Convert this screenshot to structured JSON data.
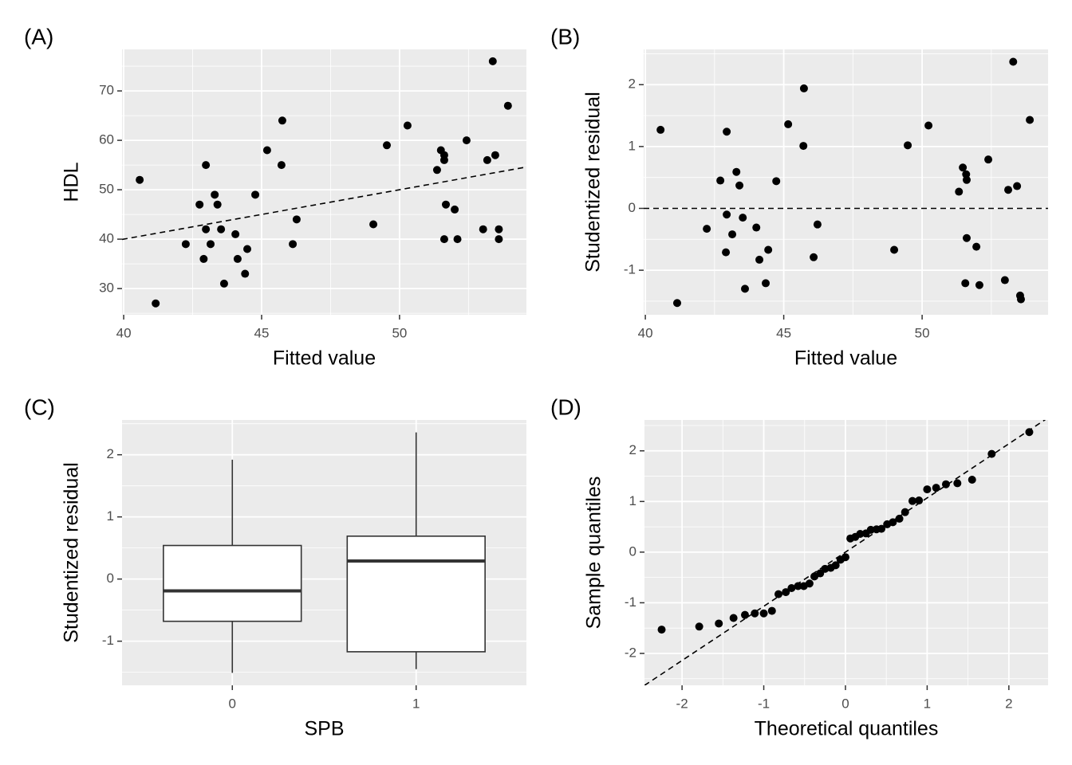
{
  "chart_data": [
    {
      "type": "scatter",
      "tag": "(A)",
      "x_label": "Fitted value",
      "y_label": "HDL",
      "color": "#000000",
      "x": [
        40.58,
        41.16,
        42.25,
        42.75,
        42.98,
        42.9,
        42.98,
        43.15,
        43.3,
        43.4,
        43.53,
        43.64,
        44.05,
        44.13,
        44.4,
        44.48,
        44.77,
        45.2,
        45.72,
        45.75,
        46.13,
        46.27,
        49.05,
        49.54,
        50.29,
        51.36,
        51.5,
        51.62,
        51.62,
        51.62,
        51.68,
        52.0,
        52.1,
        52.43,
        53.03,
        53.18,
        53.38,
        53.47,
        53.6,
        53.6,
        53.93
      ],
      "y": [
        52,
        27,
        39,
        47,
        55,
        36,
        42,
        39,
        49,
        47,
        42,
        31,
        41,
        36,
        33,
        38,
        49,
        58,
        55,
        64,
        39,
        44,
        43,
        59,
        63,
        54,
        58,
        57,
        56,
        40,
        47,
        46,
        40,
        60,
        42,
        56,
        76,
        57,
        42,
        40,
        67
      ],
      "reference_line": {
        "slope": 1,
        "intercept": 0
      },
      "xlim": [
        39.94,
        54.6
      ],
      "ylim": [
        24.7,
        78.4
      ],
      "xticks": [
        40,
        45,
        50
      ],
      "yticks": [
        30,
        40,
        50,
        60,
        70
      ],
      "grid": true
    },
    {
      "type": "scatter",
      "tag": "(B)",
      "x_label": "Fitted value",
      "y_label": "Studentized residual",
      "color": "#000000",
      "x": [
        40.55,
        41.15,
        42.22,
        42.71,
        42.91,
        42.94,
        42.94,
        43.14,
        43.29,
        43.4,
        43.52,
        43.6,
        44.01,
        44.12,
        44.35,
        44.44,
        44.73,
        45.16,
        45.71,
        45.73,
        46.08,
        46.22,
        48.99,
        49.48,
        50.23,
        51.33,
        51.47,
        51.59,
        51.61,
        51.61,
        51.56,
        51.96,
        52.07,
        52.39,
        52.99,
        53.11,
        53.29,
        53.43,
        53.54,
        53.57,
        53.89
      ],
      "y": [
        1.27,
        -1.53,
        -0.33,
        0.45,
        -0.71,
        1.24,
        -0.1,
        -0.42,
        0.59,
        0.37,
        -0.15,
        -1.3,
        -0.31,
        -0.83,
        -1.21,
        -0.67,
        0.44,
        1.36,
        1.01,
        1.94,
        -0.79,
        -0.26,
        -0.67,
        1.02,
        1.34,
        0.27,
        0.66,
        0.55,
        0.46,
        -0.48,
        -1.21,
        -0.62,
        -1.24,
        0.79,
        -1.16,
        0.3,
        2.37,
        0.36,
        -1.41,
        -1.47,
        1.43
      ],
      "reference_line": {
        "slope": 0,
        "intercept": 0
      },
      "xlim": [
        39.94,
        54.55
      ],
      "ylim": [
        -1.72,
        2.57
      ],
      "xticks": [
        40,
        45,
        50
      ],
      "yticks": [
        -1,
        0,
        1,
        2
      ],
      "grid": true
    },
    {
      "type": "box",
      "tag": "(C)",
      "x_label": "SPB",
      "y_label": "Studentized residual",
      "categories": [
        "0",
        "1"
      ],
      "boxes": [
        {
          "whisker_low": -1.51,
          "q1": -0.68,
          "median": -0.19,
          "q3": 0.54,
          "whisker_high": 1.92
        },
        {
          "whisker_low": -1.45,
          "q1": -1.17,
          "median": 0.29,
          "q3": 0.69,
          "whisker_high": 2.36
        }
      ],
      "ylim": [
        -1.71,
        2.56
      ],
      "yticks": [
        -1,
        0,
        1,
        2
      ],
      "grid": true
    },
    {
      "type": "scatter",
      "tag": "(D)",
      "x_label": "Theoretical quantiles",
      "y_label": "Sample quantiles",
      "color": "#000000",
      "x": [
        -2.25,
        -1.79,
        -1.55,
        -1.37,
        -1.23,
        -1.11,
        -1.0,
        -0.9,
        -0.82,
        -0.73,
        -0.66,
        -0.58,
        -0.51,
        -0.44,
        -0.38,
        -0.31,
        -0.25,
        -0.18,
        -0.12,
        -0.06,
        0,
        0.06,
        0.12,
        0.18,
        0.25,
        0.31,
        0.38,
        0.44,
        0.51,
        0.58,
        0.66,
        0.73,
        0.82,
        0.9,
        1.0,
        1.11,
        1.23,
        1.37,
        1.55,
        1.79,
        2.25
      ],
      "y": [
        -1.53,
        -1.47,
        -1.41,
        -1.3,
        -1.24,
        -1.21,
        -1.21,
        -1.16,
        -0.83,
        -0.79,
        -0.71,
        -0.67,
        -0.67,
        -0.62,
        -0.48,
        -0.42,
        -0.33,
        -0.31,
        -0.26,
        -0.15,
        -0.1,
        0.27,
        0.3,
        0.36,
        0.37,
        0.44,
        0.45,
        0.46,
        0.55,
        0.59,
        0.66,
        0.79,
        1.01,
        1.02,
        1.24,
        1.27,
        1.34,
        1.36,
        1.43,
        1.94,
        2.37
      ],
      "reference_line": {
        "slope": 1.07,
        "intercept": 0
      },
      "xlim": [
        -2.46,
        2.48
      ],
      "ylim": [
        -2.63,
        2.61
      ],
      "xticks": [
        -2,
        -1,
        0,
        1,
        2
      ],
      "yticks": [
        -2,
        -1,
        0,
        1,
        2
      ],
      "grid": true
    }
  ]
}
